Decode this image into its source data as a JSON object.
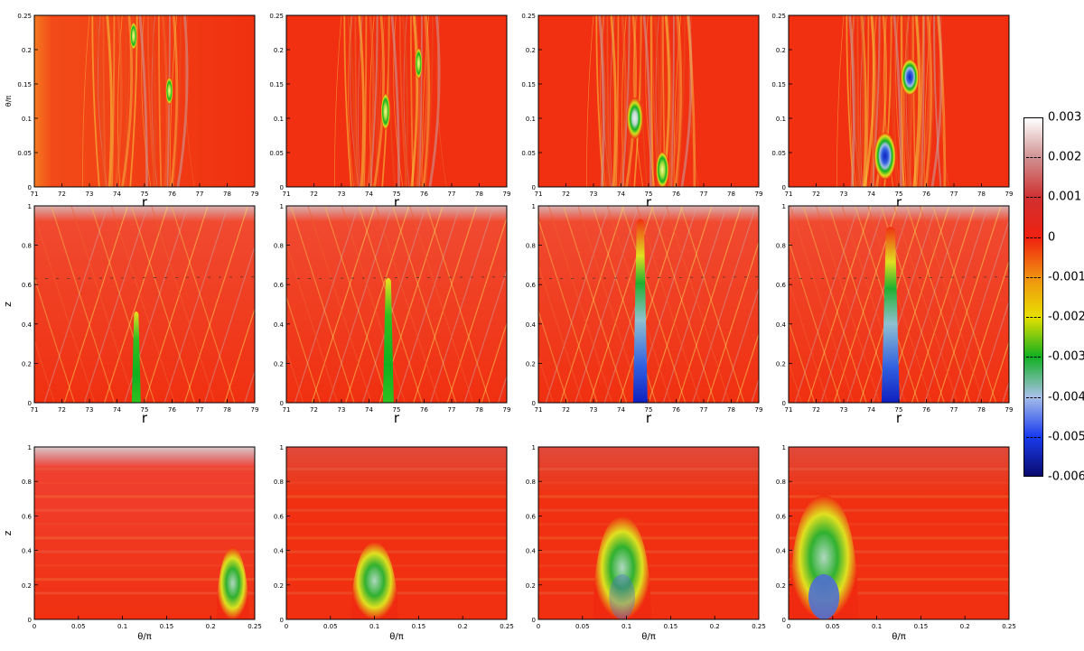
{
  "colorbar": {
    "ticks": [
      "0.003",
      "0.002",
      "0.001",
      "0",
      "-0.001",
      "-0.002",
      "-0.003",
      "-0.004",
      "-0.005",
      "-0.006"
    ],
    "min": -0.006,
    "max": 0.003,
    "colors": [
      "#0a0a6e",
      "#1a3cf0",
      "#a8c0e8",
      "#10b020",
      "#e8e000",
      "#f09010",
      "#f02010",
      "#d03030",
      "#d09090",
      "#ffffff"
    ]
  },
  "chart_data": [
    {
      "type": "heatmap",
      "row": "top",
      "col": 1,
      "xlabel": "r",
      "ylabel": "θ/π",
      "xticks": [
        "71",
        "72",
        "73",
        "74",
        "75",
        "76",
        "77",
        "78",
        "79"
      ],
      "yticks": [
        "0",
        "0.05",
        "0.1",
        "0.15",
        "0.2",
        "0.25"
      ],
      "xlim": [
        71,
        79
      ],
      "ylim": [
        0,
        0.25
      ]
    },
    {
      "type": "heatmap",
      "row": "top",
      "col": 2,
      "xlabel": "r",
      "ylabel": "",
      "xticks": [
        "71",
        "72",
        "73",
        "74",
        "75",
        "76",
        "77",
        "78",
        "79"
      ],
      "yticks": [
        "0",
        "0.05",
        "0.1",
        "0.15",
        "0.2",
        "0.25"
      ],
      "xlim": [
        71,
        79
      ],
      "ylim": [
        0,
        0.25
      ]
    },
    {
      "type": "heatmap",
      "row": "top",
      "col": 3,
      "xlabel": "r",
      "ylabel": "",
      "xticks": [
        "71",
        "72",
        "73",
        "74",
        "75",
        "76",
        "77",
        "78",
        "79"
      ],
      "yticks": [
        "0",
        "0.05",
        "0.1",
        "0.15",
        "0.2",
        "0.25"
      ],
      "xlim": [
        71,
        79
      ],
      "ylim": [
        0,
        0.25
      ]
    },
    {
      "type": "heatmap",
      "row": "top",
      "col": 4,
      "xlabel": "r",
      "ylabel": "",
      "xticks": [
        "71",
        "72",
        "73",
        "74",
        "75",
        "76",
        "77",
        "78",
        "79"
      ],
      "yticks": [
        "0",
        "0.05",
        "0.1",
        "0.15",
        "0.2",
        "0.25"
      ],
      "xlim": [
        71,
        79
      ],
      "ylim": [
        0,
        0.25
      ]
    },
    {
      "type": "heatmap",
      "row": "middle",
      "col": 1,
      "xlabel": "r",
      "ylabel": "z",
      "xticks": [
        "71",
        "72",
        "73",
        "74",
        "75",
        "76",
        "77",
        "78",
        "79"
      ],
      "yticks": [
        "0",
        "0.2",
        "0.4",
        "0.6",
        "0.8",
        "1"
      ],
      "xlim": [
        71,
        79
      ],
      "ylim": [
        0,
        1
      ]
    },
    {
      "type": "heatmap",
      "row": "middle",
      "col": 2,
      "xlabel": "r",
      "ylabel": "",
      "xticks": [
        "71",
        "72",
        "73",
        "74",
        "75",
        "76",
        "77",
        "78",
        "79"
      ],
      "yticks": [
        "0",
        "0.2",
        "0.4",
        "0.6",
        "0.8",
        "1"
      ],
      "xlim": [
        71,
        79
      ],
      "ylim": [
        0,
        1
      ]
    },
    {
      "type": "heatmap",
      "row": "middle",
      "col": 3,
      "xlabel": "r",
      "ylabel": "",
      "xticks": [
        "71",
        "72",
        "73",
        "74",
        "75",
        "76",
        "77",
        "78",
        "79"
      ],
      "yticks": [
        "0",
        "0.2",
        "0.4",
        "0.6",
        "0.8",
        "1"
      ],
      "xlim": [
        71,
        79
      ],
      "ylim": [
        0,
        1
      ]
    },
    {
      "type": "heatmap",
      "row": "middle",
      "col": 4,
      "xlabel": "r",
      "ylabel": "",
      "xticks": [
        "71",
        "72",
        "73",
        "74",
        "75",
        "76",
        "77",
        "78",
        "79"
      ],
      "yticks": [
        "0",
        "0.2",
        "0.4",
        "0.6",
        "0.8",
        "1"
      ],
      "xlim": [
        71,
        79
      ],
      "ylim": [
        0,
        1
      ]
    },
    {
      "type": "heatmap",
      "row": "bottom",
      "col": 1,
      "xlabel": "θ/π",
      "ylabel": "z",
      "xticks": [
        "0",
        "0.05",
        "0.1",
        "0.15",
        "0.2",
        "0.25"
      ],
      "yticks": [
        "0",
        "0.2",
        "0.4",
        "0.6",
        "0.8",
        "1"
      ],
      "xlim": [
        0,
        0.25
      ],
      "ylim": [
        0,
        1
      ]
    },
    {
      "type": "heatmap",
      "row": "bottom",
      "col": 2,
      "xlabel": "θ/π",
      "ylabel": "",
      "xticks": [
        "0",
        "0.05",
        "0.1",
        "0.15",
        "0.2",
        "0.25"
      ],
      "yticks": [
        "0",
        "0.2",
        "0.4",
        "0.6",
        "0.8",
        "1"
      ],
      "xlim": [
        0,
        0.25
      ],
      "ylim": [
        0,
        1
      ]
    },
    {
      "type": "heatmap",
      "row": "bottom",
      "col": 3,
      "xlabel": "θ/π",
      "ylabel": "",
      "xticks": [
        "0",
        "0.05",
        "0.1",
        "0.15",
        "0.2",
        "0.25"
      ],
      "yticks": [
        "0",
        "0.2",
        "0.4",
        "0.6",
        "0.8",
        "1"
      ],
      "xlim": [
        0,
        0.25
      ],
      "ylim": [
        0,
        1
      ]
    },
    {
      "type": "heatmap",
      "row": "bottom",
      "col": 4,
      "xlabel": "θ/π",
      "ylabel": "",
      "xticks": [
        "0",
        "0.05",
        "0.1",
        "0.15",
        "0.2",
        "0.25"
      ],
      "yticks": [
        "0",
        "0.2",
        "0.4",
        "0.6",
        "0.8",
        "1"
      ],
      "xlim": [
        0,
        0.25
      ],
      "ylim": [
        0,
        1
      ]
    }
  ]
}
